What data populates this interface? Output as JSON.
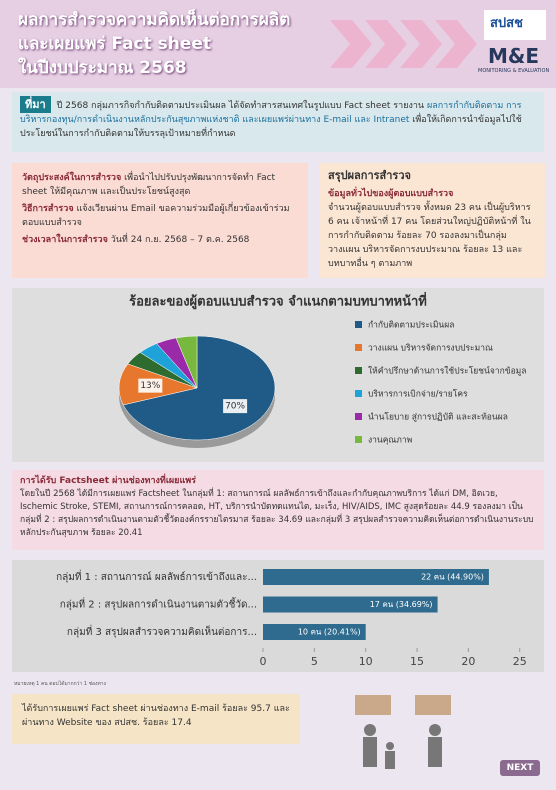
{
  "header": {
    "title_lines": [
      "ผลการสำรวจความคิดเห็นต่อการผลิต",
      "และเผยแพร่ Fact sheet",
      "ในปีงบประมาณ 2568"
    ],
    "logo_text": "สปสช",
    "me_text": "M&E",
    "me_subtitle": "MONITORING & EVALUATION"
  },
  "background": {
    "label": "ที่มา",
    "text_1": "ปี 2568 กลุ่มภารกิจกำกับติดตามประเมินผล ได้จัดทำสารสนเทศในรูปแบบ Fact sheet รายงาน ",
    "highlight": "ผลการกำกับติดตาม การบริหารกองทุน/การดำเนินงานหลักประกันสุขภาพแห่งชาติ และเผยแพร่ผ่านทาง E-mail และ Intranet",
    "text_2": " เพื่อให้เกิดการนำข้อมูลไปใช้ประโยชน์ในการกำกับติดตามให้บรรลุเป้าหมายที่กำหนด"
  },
  "objectives": {
    "items": [
      {
        "label": "วัตถุประสงค์ในการสำรวจ",
        "text": " เพื่อนำไปปรับปรุงพัฒนาการจัดทำ Fact sheet ให้มีคุณภาพ และเป็นประโยชน์สูงสุด"
      },
      {
        "label": "วิธีการสำรวจ",
        "text": " แจ้งเวียนผ่าน Email ขอความร่วมมือผู้เกี่ยวข้องเข้าร่วมตอบแบบสำรวจ"
      },
      {
        "label": "ช่วงเวลาในการสำรวจ",
        "text": " วันที่ 24 ก.ย. 2568 – 7 ต.ค. 2568"
      }
    ]
  },
  "summary": {
    "title": "สรุปผลการสำรวจ",
    "subtitle": "ข้อมูลทั่วไปของผู้ตอบแบบสำรวจ",
    "text": "จำนวนผู้ตอบแบบสำรวจ ทั้งหมด 23 คน เป็นผู้บริหาร 6 คน เจ้าหน้าที่ 17 คน โดยส่วนใหญ่ปฏิบัติหน้าที่ ในการกำกับติดตาม ร้อยละ 70 รองลงมาเป็นกลุ่มวางแผน บริหารจัดการงบประมาณ ร้อยละ 13 และบทบาทอื่น ๆ ตามภาพ"
  },
  "chart_data": [
    {
      "type": "pie",
      "title": "ร้อยละของผู้ตอบแบบสำรวจ จำแนกตามบทบาทหน้าที่",
      "categories": [
        "กำกับติดตามประเมินผล",
        "วางแผน บริหารจัดการงบประมาณ",
        "ให้คำปรึกษาด้านการใช้ประโยชน์จากข้อมูล",
        "บริหารการเบิกจ่าย/รายโคร",
        "นำนโยบาย สู่การปฏิบัติ และสะท้อนผล",
        "งานคุณภาพ"
      ],
      "values": [
        70,
        13,
        4.35,
        4.35,
        4.35,
        4.35
      ],
      "value_labels": [
        "70%",
        "13%",
        null,
        null,
        null,
        null
      ],
      "colors": [
        "#1f5b86",
        "#e8772e",
        "#2e6b2f",
        "#1ea3d9",
        "#9b2aa8",
        "#79b83f"
      ]
    },
    {
      "type": "hbar",
      "categories": [
        "กลุ่มที่ 1 : สถานการณ์ ผลลัพธ์การเข้าถึงและ...",
        "กลุ่มที่ 2 : สรุปผลการดำเนินงานตามตัวชี้วัด...",
        "กลุ่มที่ 3 สรุปผลสำรวจความคิดเห็นต่อการ..."
      ],
      "values": [
        22,
        17,
        10
      ],
      "value_labels": [
        "22 คน (44.90%)",
        "17 คน  (34.69%)",
        "10 คน (20.41%)"
      ],
      "color": "#2f6b8f",
      "xlim": [
        0,
        26
      ],
      "xticks": [
        0,
        5,
        10,
        15,
        20,
        25
      ]
    }
  ],
  "channels": {
    "title": "การได้รับ Factsheet ผ่านช่องทางที่เผยแพร่",
    "text": "โดยในปี 2568 ได้มีการเผยแพร่ Factsheet ในกลุ่มที่ 1: สถานการณ์ ผลลัพธ์การเข้าถึงและกำกับคุณภาพบริการ ได้แก่ DM, อิตเวย, Ischemic Stroke, STEMI, สถานการณ์การคลอด, HT, บริการนำบัดทดแทนไต, มะเร็ง, HIV/AIDS, IMC สูงสุดร้อยละ 44.9 รองลงมา เป็น กลุ่มที่ 2 : สรุปผลการดำเนินงานตามตัวชี้วัดองค์กรรายไตรมาส ร้อยละ 34.69 และกลุ่มที่ 3 สรุปผลสำรวจความคิดเห็นต่อการดำเนินงานระบบหลักประกันสุขภาพ ร้อยละ 20.41"
  },
  "note": "หมายเหตุ 1 คน ตอบได้มากกว่า 1 ช่องทาง",
  "footer": {
    "text": "ได้รับการเผยแพร่ Fact sheet ผ่านช่องทาง E-mail ร้อยละ 95.7 และผ่านทาง Website ของ สปสช. ร้อยละ 17.4",
    "next": "NEXT"
  }
}
